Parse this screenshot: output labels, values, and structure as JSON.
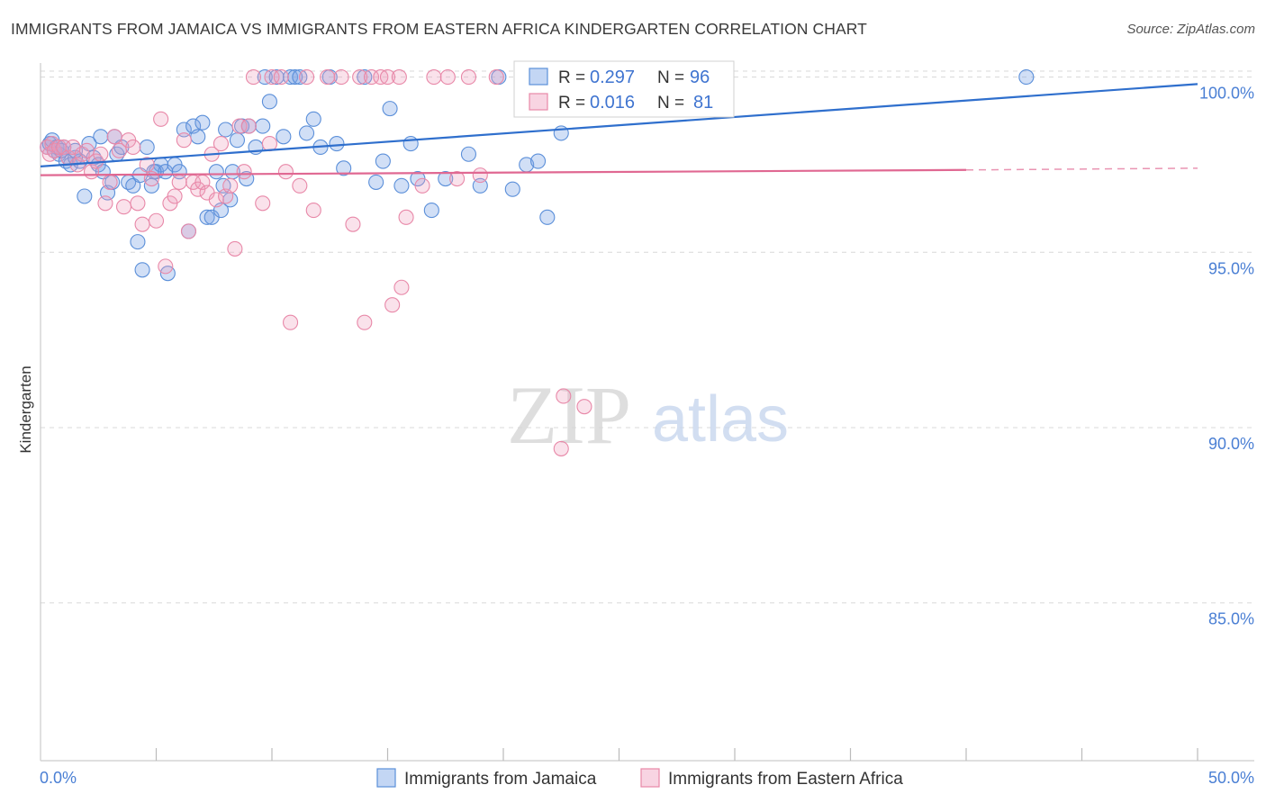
{
  "title": "IMMIGRANTS FROM JAMAICA VS IMMIGRANTS FROM EASTERN AFRICA KINDERGARTEN CORRELATION CHART",
  "source": "Source: ZipAtlas.com",
  "watermark": {
    "zip": "ZIP",
    "atlas": "atlas"
  },
  "colors": {
    "blue": "#5b8fd9",
    "blue_fill": "rgba(122,164,230,0.35)",
    "blue_line": "#2f6fcd",
    "pink": "#e888a8",
    "pink_fill": "rgba(240,160,190,0.30)",
    "pink_line": "#e06892",
    "axis_text": "#4a7fd4",
    "grid": "#d8d8d8"
  },
  "legend_stats": [
    {
      "r_label": "R =",
      "r_value": "0.297",
      "n_label": "N =",
      "n_value": "96",
      "series": "blue"
    },
    {
      "r_label": "R =",
      "r_value": "0.016",
      "n_label": "N =",
      "n_value": "81",
      "series": "pink"
    }
  ],
  "chart_data": {
    "type": "scatter",
    "title": "IMMIGRANTS FROM JAMAICA VS IMMIGRANTS FROM EASTERN AFRICA KINDERGARTEN CORRELATION CHART",
    "xlabel": "",
    "ylabel": "Kindergarten",
    "xlim": [
      0,
      50
    ],
    "ylim": [
      80.5,
      100.4
    ],
    "x_tick_labels": [
      "0.0%",
      "50.0%"
    ],
    "x_tick_values": [
      0,
      50
    ],
    "x_minor_ticks": [
      5,
      10,
      15,
      20,
      25,
      30,
      35,
      40,
      45
    ],
    "y_tick_labels": [
      "100.0%",
      "95.0%",
      "90.0%",
      "85.0%"
    ],
    "y_tick_values": [
      100,
      95,
      90,
      85
    ],
    "grid": true,
    "legend_position": "bottom",
    "series": [
      {
        "name": "Immigrants from Jamaica",
        "color": "blue",
        "trend": {
          "x0": 0,
          "y0": 97.45,
          "x1": 50,
          "y1": 99.8
        },
        "points": [
          [
            0.3,
            98.0
          ],
          [
            0.4,
            98.1
          ],
          [
            0.5,
            98.2
          ],
          [
            0.6,
            97.9
          ],
          [
            0.7,
            98.0
          ],
          [
            0.8,
            97.8
          ],
          [
            1.0,
            98.0
          ],
          [
            1.1,
            97.6
          ],
          [
            1.3,
            97.5
          ],
          [
            1.5,
            97.7
          ],
          [
            1.7,
            97.6
          ],
          [
            1.9,
            96.6
          ],
          [
            2.1,
            98.1
          ],
          [
            2.3,
            97.7
          ],
          [
            2.5,
            97.5
          ],
          [
            2.7,
            97.3
          ],
          [
            2.9,
            96.7
          ],
          [
            3.1,
            97.0
          ],
          [
            3.3,
            97.8
          ],
          [
            3.5,
            98.0
          ],
          [
            3.8,
            97.0
          ],
          [
            4.0,
            96.9
          ],
          [
            4.2,
            95.3
          ],
          [
            4.3,
            97.2
          ],
          [
            4.4,
            94.5
          ],
          [
            4.6,
            98.0
          ],
          [
            4.8,
            96.9
          ],
          [
            5.0,
            97.3
          ],
          [
            5.2,
            97.5
          ],
          [
            5.4,
            97.3
          ],
          [
            5.5,
            94.4
          ],
          [
            5.8,
            97.5
          ],
          [
            6.0,
            97.3
          ],
          [
            6.2,
            98.5
          ],
          [
            6.4,
            95.6
          ],
          [
            6.6,
            98.6
          ],
          [
            6.8,
            98.3
          ],
          [
            7.0,
            98.7
          ],
          [
            7.2,
            96.0
          ],
          [
            7.4,
            96.0
          ],
          [
            7.6,
            97.3
          ],
          [
            7.8,
            96.2
          ],
          [
            8.0,
            98.5
          ],
          [
            8.2,
            96.5
          ],
          [
            8.5,
            98.2
          ],
          [
            8.7,
            98.6
          ],
          [
            8.9,
            97.1
          ],
          [
            9.0,
            98.6
          ],
          [
            9.3,
            98.0
          ],
          [
            9.6,
            98.6
          ],
          [
            9.7,
            100.0
          ],
          [
            9.9,
            99.3
          ],
          [
            10.2,
            100.0
          ],
          [
            10.5,
            98.3
          ],
          [
            10.8,
            100.0
          ],
          [
            11.0,
            100.0
          ],
          [
            11.2,
            100.0
          ],
          [
            11.5,
            98.4
          ],
          [
            11.8,
            98.8
          ],
          [
            12.1,
            98.0
          ],
          [
            12.5,
            100.0
          ],
          [
            12.8,
            98.1
          ],
          [
            13.1,
            97.4
          ],
          [
            14.0,
            100.0
          ],
          [
            14.5,
            97.0
          ],
          [
            14.8,
            97.6
          ],
          [
            15.1,
            99.1
          ],
          [
            15.6,
            96.9
          ],
          [
            16.0,
            98.1
          ],
          [
            16.3,
            97.1
          ],
          [
            16.9,
            96.2
          ],
          [
            17.5,
            97.1
          ],
          [
            18.5,
            97.8
          ],
          [
            19.0,
            96.9
          ],
          [
            19.8,
            100.0
          ],
          [
            20.4,
            96.8
          ],
          [
            21.0,
            97.5
          ],
          [
            21.5,
            97.6
          ],
          [
            21.9,
            96.0
          ],
          [
            22.5,
            98.4
          ],
          [
            22.8,
            100.0
          ],
          [
            23.0,
            100.0
          ],
          [
            24.0,
            100.0
          ],
          [
            25.0,
            100.0
          ],
          [
            26.0,
            100.0
          ],
          [
            27.2,
            100.0
          ],
          [
            28.0,
            100.0
          ],
          [
            29.0,
            99.4
          ],
          [
            42.6,
            100.0
          ],
          [
            1.5,
            97.9
          ],
          [
            3.2,
            98.3
          ],
          [
            2.6,
            98.3
          ],
          [
            0.9,
            97.9
          ],
          [
            4.9,
            97.3
          ],
          [
            7.9,
            96.9
          ],
          [
            8.3,
            97.3
          ]
        ]
      },
      {
        "name": "Immigrants from Eastern Africa",
        "color": "pink",
        "trend": {
          "x0": 0,
          "y0": 97.2,
          "x1": 40,
          "y1": 97.35
        },
        "trend_dashed": {
          "x0": 40,
          "y0": 97.35,
          "x1": 50,
          "y1": 97.4
        },
        "points": [
          [
            0.3,
            98.0
          ],
          [
            0.4,
            97.8
          ],
          [
            0.5,
            98.1
          ],
          [
            0.6,
            97.9
          ],
          [
            0.8,
            98.0
          ],
          [
            1.0,
            98.0
          ],
          [
            1.2,
            97.7
          ],
          [
            1.4,
            98.0
          ],
          [
            1.6,
            97.5
          ],
          [
            1.8,
            97.8
          ],
          [
            2.0,
            97.9
          ],
          [
            2.2,
            97.3
          ],
          [
            2.4,
            97.6
          ],
          [
            2.6,
            97.8
          ],
          [
            2.8,
            96.4
          ],
          [
            3.0,
            97.0
          ],
          [
            3.2,
            98.3
          ],
          [
            3.4,
            97.9
          ],
          [
            3.6,
            96.3
          ],
          [
            3.8,
            98.2
          ],
          [
            4.0,
            98.0
          ],
          [
            4.2,
            96.4
          ],
          [
            4.4,
            95.8
          ],
          [
            4.6,
            97.5
          ],
          [
            4.8,
            97.1
          ],
          [
            5.0,
            95.9
          ],
          [
            5.2,
            98.8
          ],
          [
            5.4,
            94.6
          ],
          [
            5.6,
            96.4
          ],
          [
            5.8,
            96.6
          ],
          [
            6.0,
            97.0
          ],
          [
            6.2,
            98.2
          ],
          [
            6.4,
            95.6
          ],
          [
            6.6,
            97.0
          ],
          [
            6.8,
            96.8
          ],
          [
            7.0,
            97.0
          ],
          [
            7.2,
            96.7
          ],
          [
            7.4,
            97.8
          ],
          [
            7.6,
            96.5
          ],
          [
            7.8,
            98.1
          ],
          [
            8.0,
            96.6
          ],
          [
            8.2,
            96.9
          ],
          [
            8.4,
            95.1
          ],
          [
            8.6,
            98.6
          ],
          [
            8.8,
            97.3
          ],
          [
            9.0,
            98.6
          ],
          [
            9.2,
            100.0
          ],
          [
            9.6,
            96.4
          ],
          [
            9.9,
            98.1
          ],
          [
            10.0,
            100.0
          ],
          [
            10.4,
            100.0
          ],
          [
            10.6,
            97.3
          ],
          [
            10.8,
            93.0
          ],
          [
            11.2,
            96.9
          ],
          [
            11.5,
            100.0
          ],
          [
            11.8,
            96.2
          ],
          [
            12.4,
            100.0
          ],
          [
            13.0,
            100.0
          ],
          [
            13.5,
            95.8
          ],
          [
            13.8,
            100.0
          ],
          [
            14.0,
            93.0
          ],
          [
            14.3,
            100.0
          ],
          [
            14.7,
            100.0
          ],
          [
            15.0,
            100.0
          ],
          [
            15.2,
            93.5
          ],
          [
            15.5,
            100.0
          ],
          [
            15.6,
            94.0
          ],
          [
            15.8,
            96.0
          ],
          [
            16.5,
            96.9
          ],
          [
            17.0,
            100.0
          ],
          [
            17.6,
            100.0
          ],
          [
            18.0,
            97.1
          ],
          [
            18.5,
            100.0
          ],
          [
            19.0,
            97.2
          ],
          [
            19.7,
            100.0
          ],
          [
            21.0,
            100.0
          ],
          [
            22.6,
            90.9
          ],
          [
            22.5,
            89.4
          ],
          [
            23.5,
            90.6
          ],
          [
            25.0,
            100.0
          ],
          [
            27.6,
            100.0
          ]
        ]
      }
    ]
  },
  "legend": [
    {
      "label": "Immigrants from Jamaica",
      "color": "blue"
    },
    {
      "label": "Immigrants from Eastern Africa",
      "color": "pink"
    }
  ]
}
